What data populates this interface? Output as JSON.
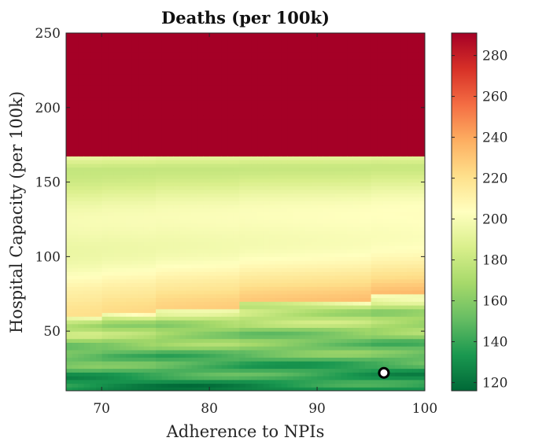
{
  "chart_data": {
    "type": "heatmap",
    "title": "Deaths (per 100k)",
    "xlabel": "Adherence to NPIs",
    "ylabel": "Hospital Capacity (per 100k)",
    "xlim": [
      66.7,
      100
    ],
    "ylim": [
      10,
      250
    ],
    "xticks": [
      70,
      80,
      90,
      100
    ],
    "yticks": [
      50,
      100,
      150,
      200,
      250
    ],
    "colorbar": {
      "min": 116,
      "max": 291,
      "ticks": [
        120,
        140,
        160,
        180,
        200,
        220,
        240,
        260,
        280
      ],
      "colormap": [
        "#006837",
        "#1a9850",
        "#66bd63",
        "#a6d96a",
        "#d9ef8b",
        "#ffffbf",
        "#fee08b",
        "#fdae61",
        "#f46d43",
        "#d73027",
        "#a50026"
      ]
    },
    "saturation_threshold_capacity": 168,
    "saturated_value": 291,
    "capacity_steps": [
      {
        "adherence_from": 66.7,
        "adherence_to": 70,
        "capacity": 59
      },
      {
        "adherence_from": 70,
        "adherence_to": 75,
        "capacity": 62
      },
      {
        "adherence_from": 75,
        "adherence_to": 83,
        "capacity": 66
      },
      {
        "adherence_from": 83,
        "adherence_to": 95,
        "capacity": 70
      },
      {
        "adherence_from": 95,
        "adherence_to": 100,
        "capacity": 74
      }
    ],
    "marker": {
      "adherence": 96.2,
      "capacity": 22,
      "label": "selected point"
    }
  }
}
